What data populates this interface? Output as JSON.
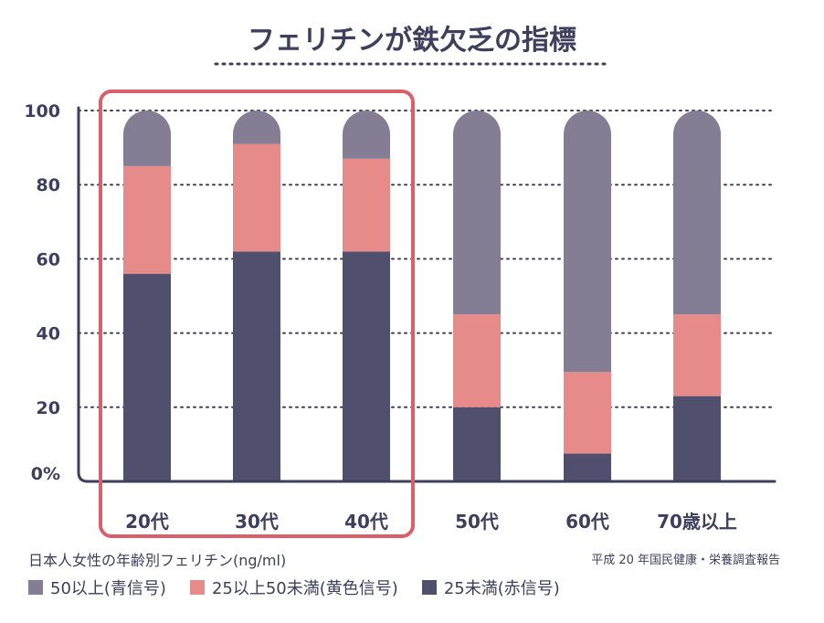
{
  "chart_data": {
    "type": "bar",
    "stacked": true,
    "title": "フェリチンが鉄欠乏の指標",
    "categories": [
      "20代",
      "30代",
      "40代",
      "50代",
      "60代",
      "70歳以上"
    ],
    "y_ticks": [
      "100",
      "80",
      "60",
      "40",
      "20",
      "0%"
    ],
    "ylim": [
      0,
      100
    ],
    "grid": true,
    "highlighted_categories": [
      "20代",
      "30代",
      "40代"
    ],
    "series": [
      {
        "name": "25未満(赤信号)",
        "color": "#50506e",
        "values": [
          56,
          62,
          62,
          20,
          7.5,
          23
        ]
      },
      {
        "name": "25以上50未満(黄色信号)",
        "color": "#e68a8a",
        "values": [
          29,
          29,
          25,
          25,
          22,
          22
        ]
      },
      {
        "name": "50以上(青信号)",
        "color": "#857d93",
        "values": [
          15,
          9,
          13,
          55,
          70.5,
          55
        ]
      }
    ]
  },
  "note": "日本人女性の年齢別フェリチン(ng/ml)",
  "source": "平成 20 年国民健康・栄養調査報告",
  "legend": [
    {
      "label": "50以上(青信号)",
      "color": "#857d93"
    },
    {
      "label": "25以上50未満(黄色信号)",
      "color": "#e68a8a"
    },
    {
      "label": "25未満(赤信号)",
      "color": "#50506e"
    }
  ],
  "colors": {
    "text": "#3d3f5c",
    "axis": "#3d3f5c",
    "highlight": "#d9606b"
  }
}
